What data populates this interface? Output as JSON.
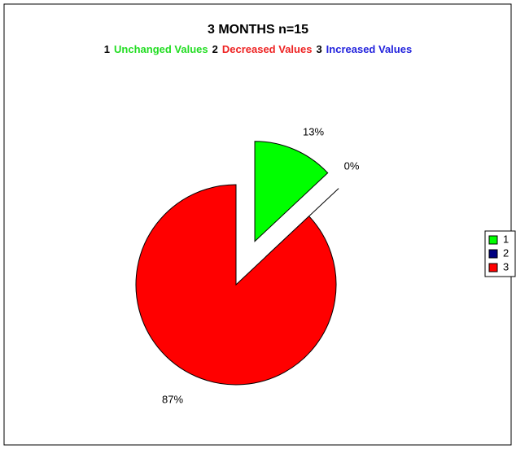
{
  "chart_data": {
    "type": "pie",
    "title": "3 MONTHS n=15",
    "subtitle": [
      {
        "text": "1",
        "color": "#000000"
      },
      {
        "text": "Unchanged Values",
        "color": "#22dd22"
      },
      {
        "text": "2",
        "color": "#000000"
      },
      {
        "text": "Decreased Values",
        "color": "#ee2222"
      },
      {
        "text": "3",
        "color": "#000000"
      },
      {
        "text": "Increased Values",
        "color": "#2222dd"
      }
    ],
    "categories": [
      "1",
      "2",
      "3"
    ],
    "values": [
      13,
      0,
      87
    ],
    "value_labels": [
      "13%",
      "0%",
      "87%"
    ],
    "colors": [
      "#00ff00",
      "#000080",
      "#ff0000"
    ],
    "legend": "right"
  }
}
